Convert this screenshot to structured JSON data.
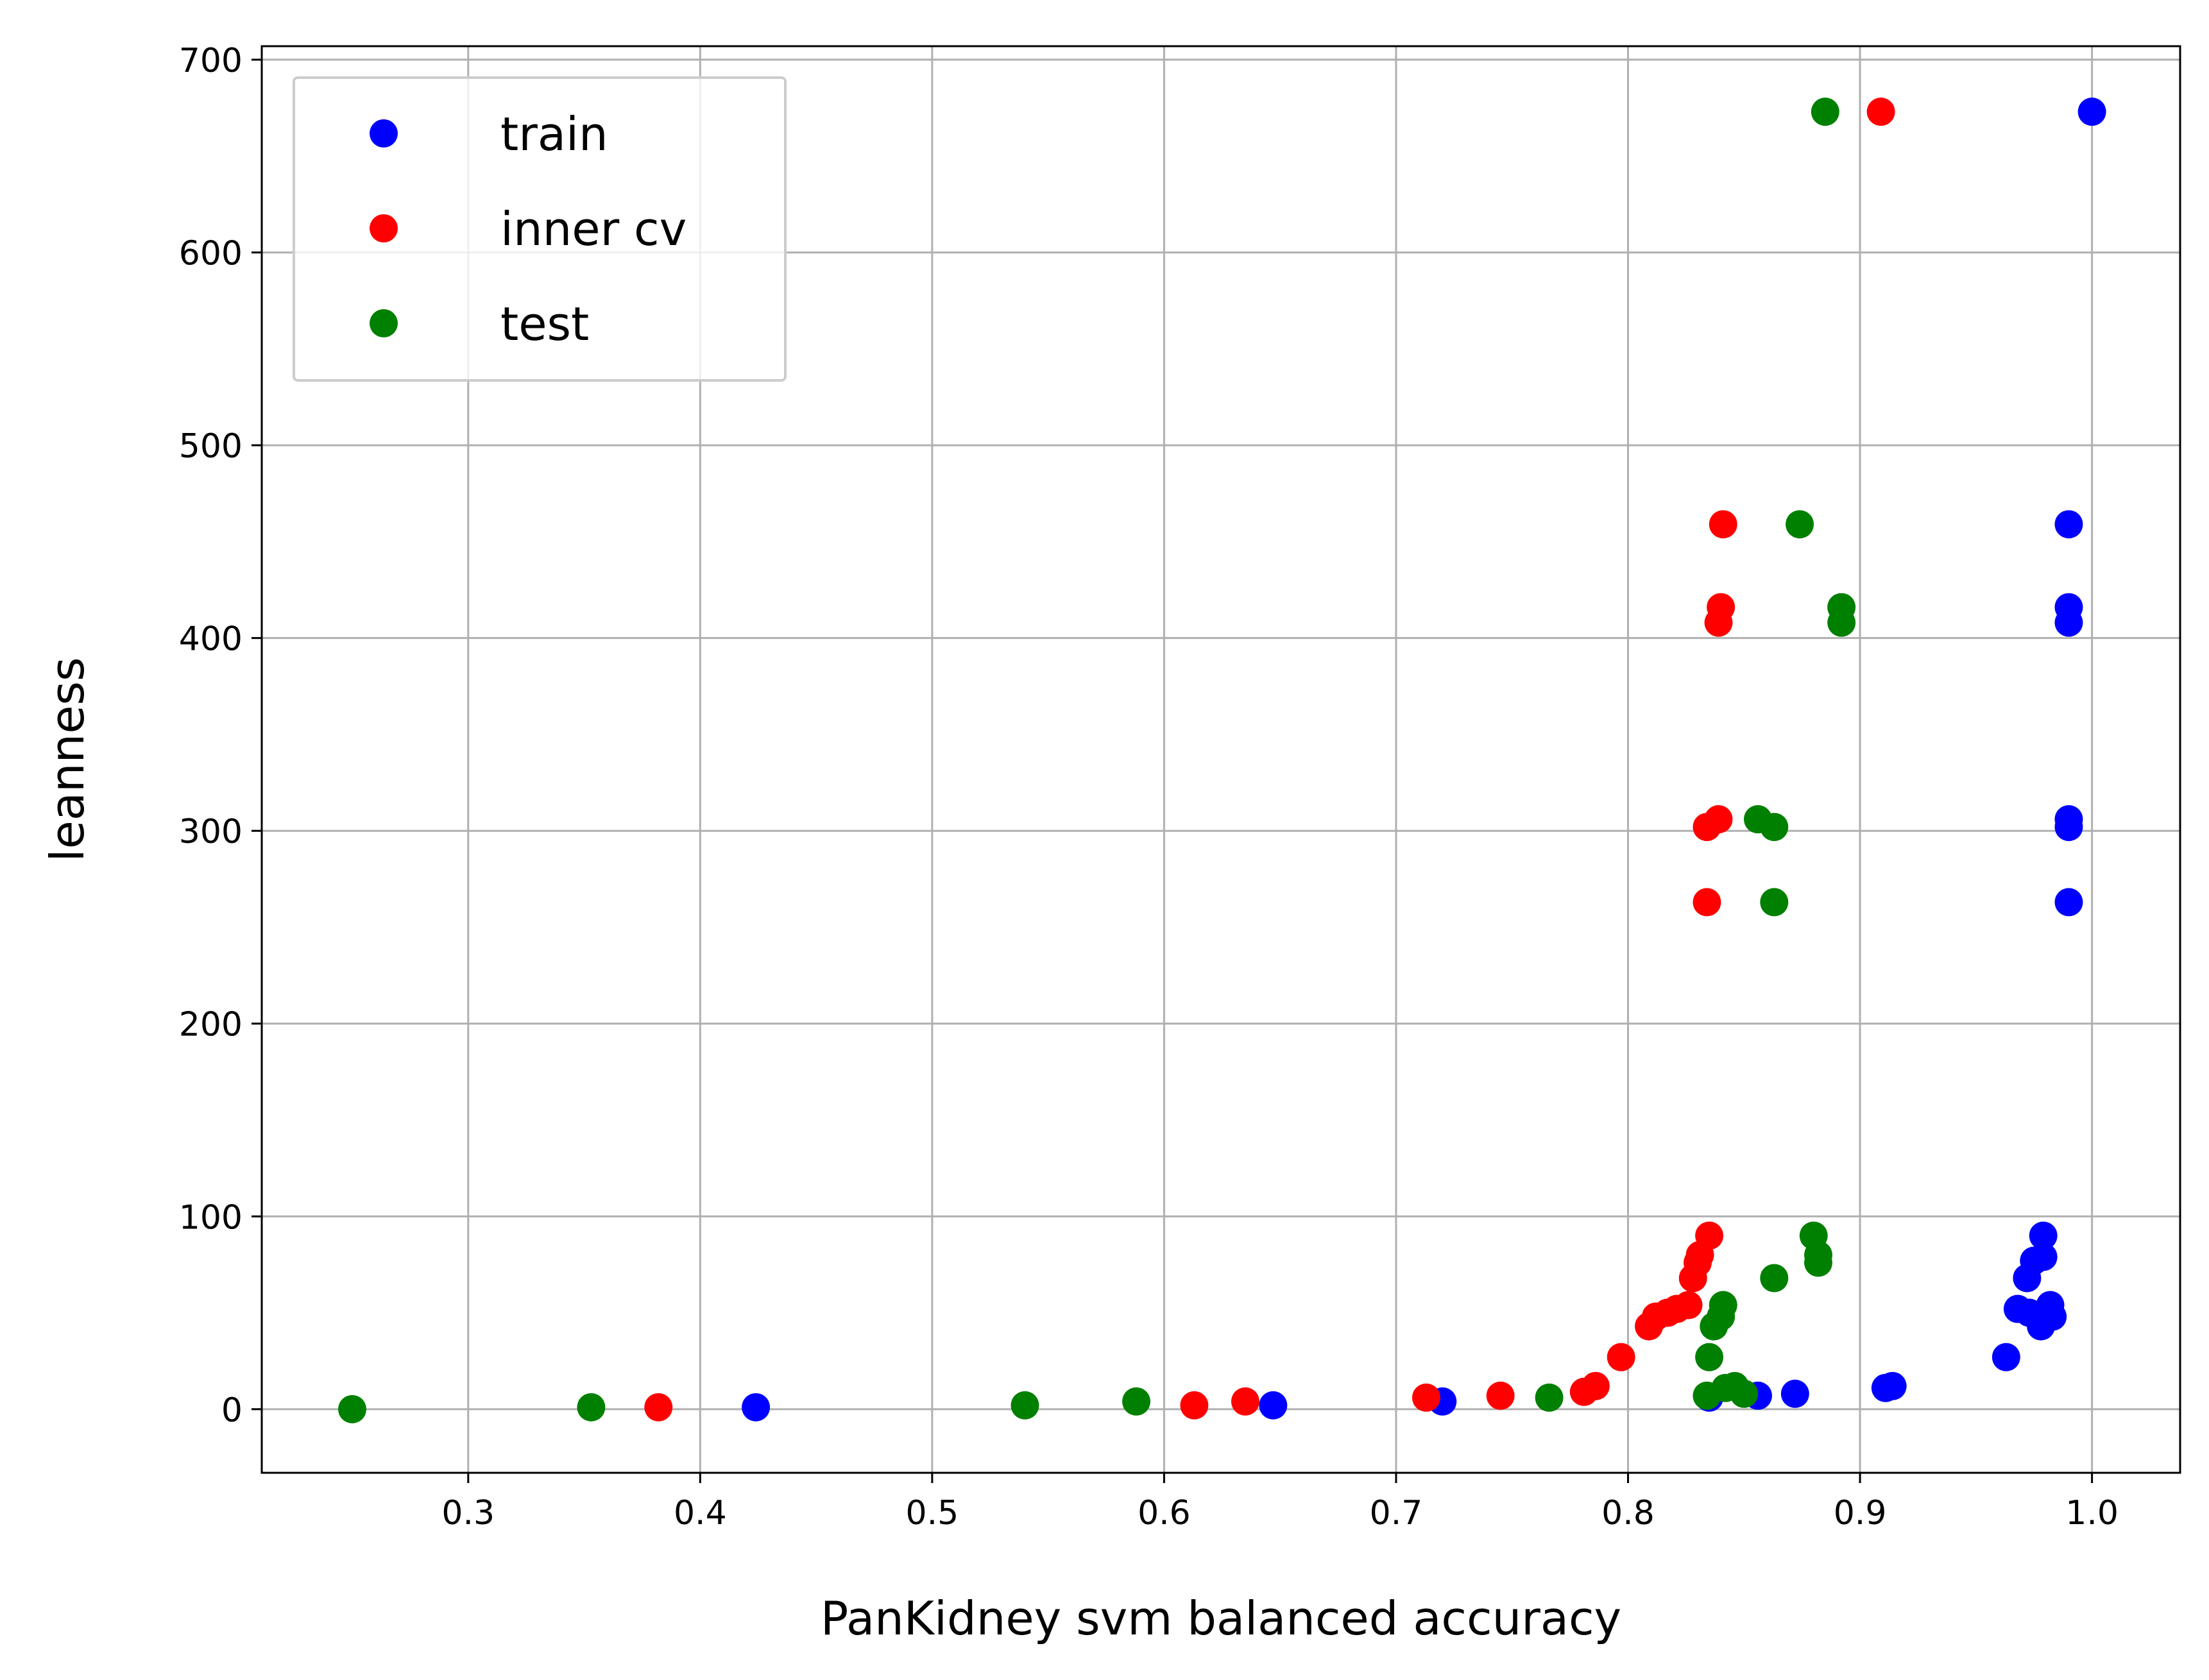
{
  "chart_data": {
    "type": "scatter",
    "xlabel": "PanKidney svm balanced accuracy",
    "ylabel": "leanness",
    "xlim": [
      0.211,
      1.038
    ],
    "ylim": [
      -33,
      707
    ],
    "xticks": [
      0.3,
      0.4,
      0.5,
      0.6,
      0.7,
      0.8,
      0.9,
      1.0
    ],
    "xtick_labels": [
      "0.3",
      "0.4",
      "0.5",
      "0.6",
      "0.7",
      "0.8",
      "0.9",
      "1.0"
    ],
    "yticks": [
      0,
      100,
      200,
      300,
      400,
      500,
      600,
      700
    ],
    "ytick_labels": [
      "0",
      "100",
      "200",
      "300",
      "400",
      "500",
      "600",
      "700"
    ],
    "grid": true,
    "legend_position": "top-left",
    "series": [
      {
        "name": "train",
        "color": "#0000ff",
        "points": [
          [
            1.0,
            673
          ],
          [
            0.99,
            459
          ],
          [
            0.99,
            416
          ],
          [
            0.99,
            408
          ],
          [
            0.99,
            306
          ],
          [
            0.99,
            302
          ],
          [
            0.99,
            263
          ],
          [
            0.979,
            90
          ],
          [
            0.979,
            79
          ],
          [
            0.975,
            77
          ],
          [
            0.972,
            68
          ],
          [
            0.968,
            52
          ],
          [
            0.973,
            50
          ],
          [
            0.982,
            54
          ],
          [
            0.983,
            48
          ],
          [
            0.978,
            43
          ],
          [
            0.963,
            27
          ],
          [
            0.914,
            12
          ],
          [
            0.911,
            11
          ],
          [
            0.872,
            8
          ],
          [
            0.856,
            7
          ],
          [
            0.835,
            6
          ],
          [
            0.72,
            4
          ],
          [
            0.647,
            2
          ],
          [
            0.424,
            1
          ]
        ]
      },
      {
        "name": "inner cv",
        "color": "#ff0000",
        "points": [
          [
            0.909,
            673
          ],
          [
            0.841,
            459
          ],
          [
            0.84,
            416
          ],
          [
            0.839,
            408
          ],
          [
            0.839,
            306
          ],
          [
            0.834,
            302
          ],
          [
            0.834,
            263
          ],
          [
            0.835,
            90
          ],
          [
            0.831,
            80
          ],
          [
            0.83,
            76
          ],
          [
            0.828,
            68
          ],
          [
            0.826,
            54
          ],
          [
            0.821,
            52
          ],
          [
            0.817,
            50
          ],
          [
            0.812,
            48
          ],
          [
            0.809,
            43
          ],
          [
            0.797,
            27
          ],
          [
            0.786,
            12
          ],
          [
            0.781,
            9
          ],
          [
            0.745,
            7
          ],
          [
            0.713,
            6
          ],
          [
            0.635,
            4
          ],
          [
            0.613,
            2
          ],
          [
            0.382,
            1
          ]
        ]
      },
      {
        "name": "test",
        "color": "#008000",
        "points": [
          [
            0.885,
            673
          ],
          [
            0.874,
            459
          ],
          [
            0.892,
            416
          ],
          [
            0.892,
            408
          ],
          [
            0.856,
            306
          ],
          [
            0.863,
            302
          ],
          [
            0.863,
            263
          ],
          [
            0.88,
            90
          ],
          [
            0.882,
            80
          ],
          [
            0.882,
            76
          ],
          [
            0.863,
            68
          ],
          [
            0.841,
            54
          ],
          [
            0.84,
            48
          ],
          [
            0.837,
            43
          ],
          [
            0.835,
            27
          ],
          [
            0.842,
            11
          ],
          [
            0.846,
            12
          ],
          [
            0.85,
            8
          ],
          [
            0.834,
            7
          ],
          [
            0.766,
            6
          ],
          [
            0.588,
            4
          ],
          [
            0.54,
            2
          ],
          [
            0.353,
            1
          ],
          [
            0.25,
            0
          ]
        ]
      }
    ]
  }
}
